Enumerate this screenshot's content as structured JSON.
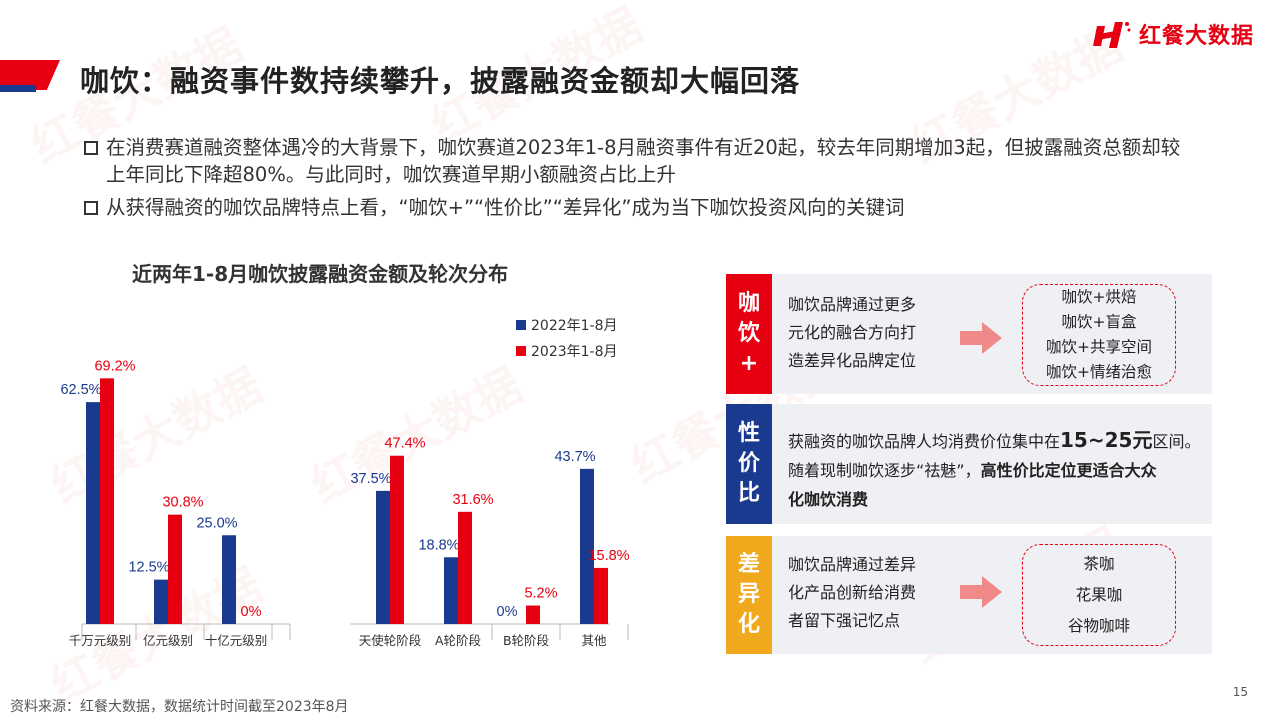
{
  "header": {
    "title": "咖饮：融资事件数持续攀升，披露融资金额却大幅回落",
    "logo_text": "红餐大数据"
  },
  "bullets": [
    "在消费赛道融资整体遇冷的大背景下，咖饮赛道2023年1-8月融资事件有近20起，较去年同期增加3起，但披露融资总额却较上年同比下降超80%。与此同时，咖饮赛道早期小额融资占比上升",
    "从获得融资的咖饮品牌特点上看，“咖饮+”“性价比”“差异化”成为当下咖饮投资风向的关键词"
  ],
  "chart_data": {
    "type": "bar",
    "title": "近两年1-8月咖饮披露融资金额及轮次分布",
    "groups": [
      [
        "千万元级别",
        "亿元级别",
        "十亿元级别"
      ],
      [
        "天使轮阶段",
        "A轮阶段",
        "B轮阶段",
        "其他"
      ]
    ],
    "categories": [
      "千万元级别",
      "亿元级别",
      "十亿元级别",
      "天使轮阶段",
      "A轮阶段",
      "B轮阶段",
      "其他"
    ],
    "series": [
      {
        "name": "2022年1-8月",
        "values": [
          62.5,
          12.5,
          25.0,
          37.5,
          18.8,
          0,
          43.7
        ],
        "labels": [
          "62.5%",
          "12.5%",
          "25.0%",
          "37.5%",
          "18.8%",
          "0%",
          "43.7%"
        ],
        "color": "#1a3a8f"
      },
      {
        "name": "2023年1-8月",
        "values": [
          69.2,
          30.8,
          0,
          47.4,
          31.6,
          5.2,
          15.8
        ],
        "labels": [
          "69.2%",
          "30.8%",
          "0%",
          "47.4%",
          "31.6%",
          "5.2%",
          "15.8%"
        ],
        "color": "#e60012"
      }
    ],
    "ylim": [
      0,
      80
    ],
    "grid": false,
    "legend_position": "top-right"
  },
  "panels": [
    {
      "tag_chars": [
        "咖",
        "饮",
        "+"
      ],
      "tag_color": "#e60012",
      "text_lines": [
        "咖饮品牌通过更多",
        "元化的融合方向打",
        "造差异化品牌定位"
      ],
      "items": [
        "咖饮+烘焙",
        "咖饮+盲盒",
        "咖饮+共享空间",
        "咖饮+情绪治愈"
      ]
    },
    {
      "tag_chars": [
        "性",
        "价",
        "比"
      ],
      "tag_color": "#1a3a8f",
      "line1_a": "获融资的咖饮品牌人均消费价位集中在",
      "line1_big": "15~25元",
      "line1_b": "区间。",
      "line2_a": "随着现制咖饮逐步“祛魅”，",
      "line2_bold": "高性价比定位更适合大众",
      "line3_bold": "化咖饮消费"
    },
    {
      "tag_chars": [
        "差",
        "异",
        "化"
      ],
      "tag_color": "#f0a81c",
      "text_lines": [
        "咖饮品牌通过差异",
        "化产品创新给消费",
        "者留下强记忆点"
      ],
      "items": [
        "茶咖",
        "花果咖",
        "谷物咖啡"
      ]
    }
  ],
  "footer": {
    "source": "资料来源：红餐大数据，数据统计时间截至2023年8月",
    "page": "15"
  },
  "colors": {
    "brand_red": "#e60012",
    "brand_blue": "#1a3a8f",
    "accent_yellow": "#f0a81c",
    "arrow_pink": "#f08a8a"
  }
}
